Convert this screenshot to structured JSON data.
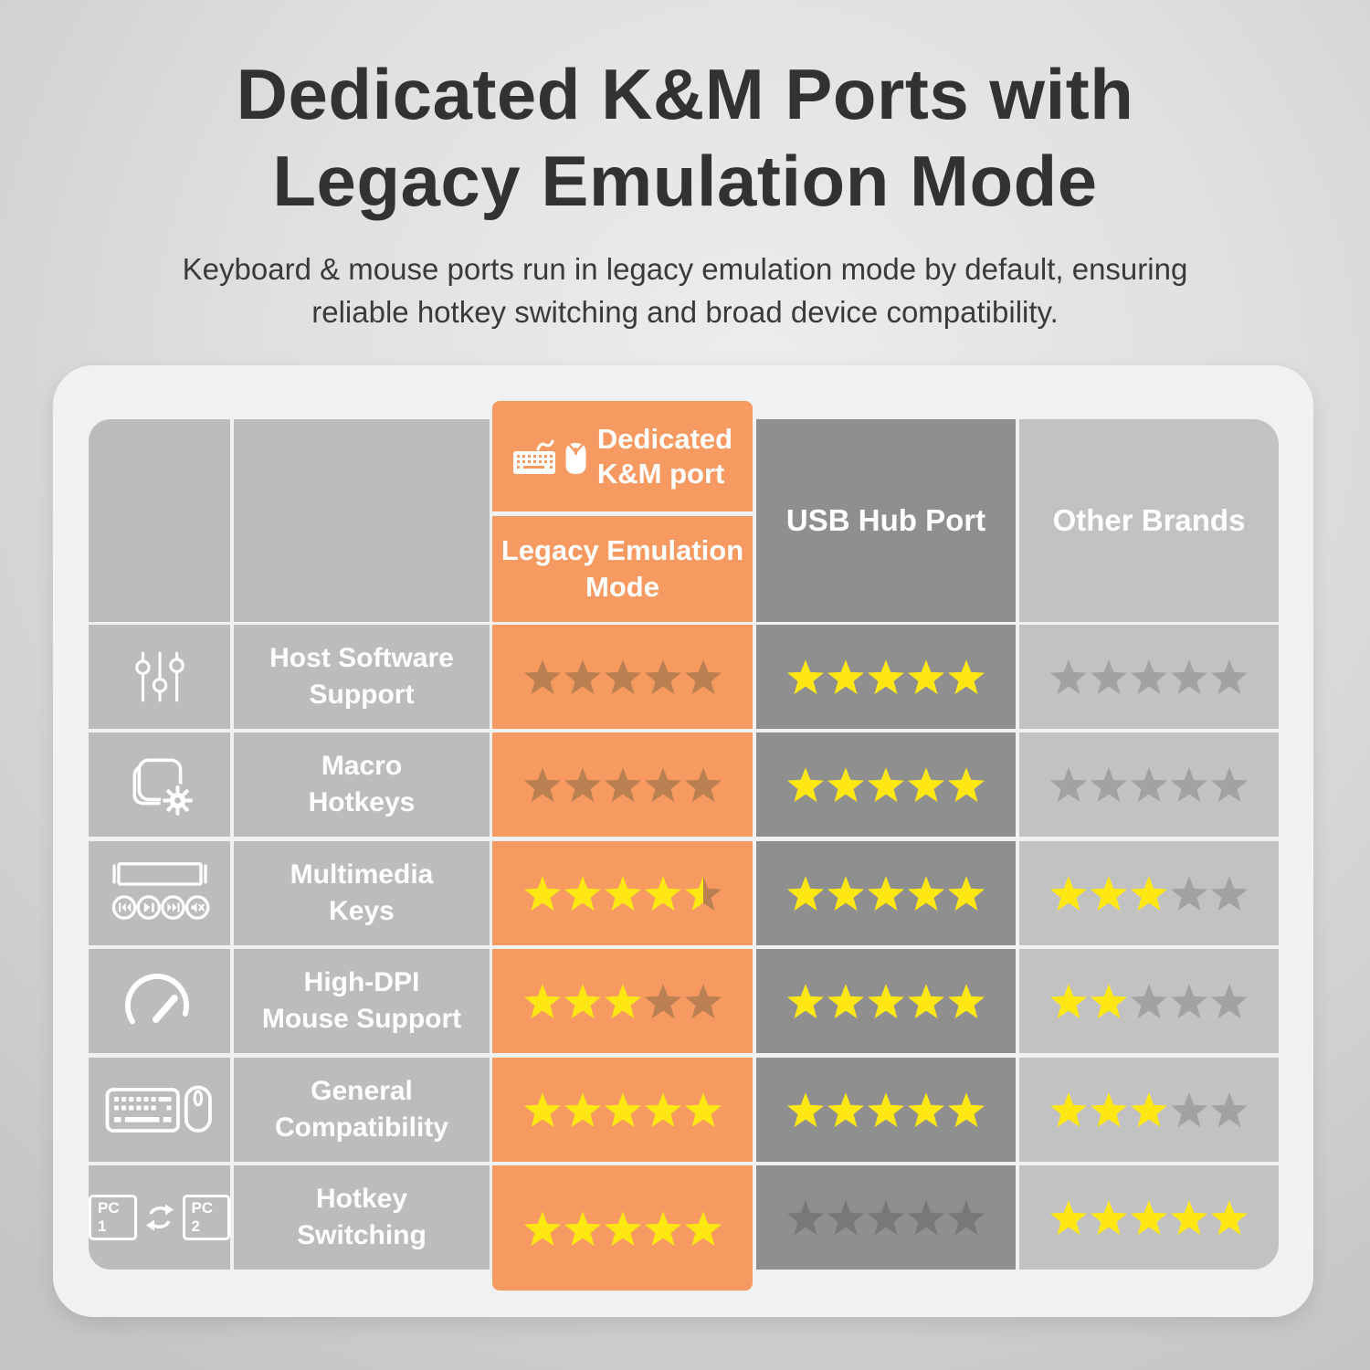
{
  "header": {
    "title_lines": [
      "Dedicated K&M Ports with",
      "Legacy Emulation Mode"
    ],
    "subtitle_lines": [
      "Keyboard & mouse ports run in legacy emulation mode by default, ensuring",
      "reliable hotkey switching and broad device compatibility."
    ]
  },
  "table": {
    "max_stars": 5,
    "km_header": {
      "title": "Dedicated\nK&M port",
      "mode": "Legacy Emulation\nMode",
      "icons": [
        "keyboard-icon",
        "mouse-icon"
      ]
    },
    "usb_header": "USB Hub Port",
    "other_header": "Other Brands",
    "rows": [
      {
        "icon": "sliders-icon",
        "feature": "Host Software\nSupport",
        "ratings": {
          "km": 0,
          "usb": 5,
          "other": 0
        }
      },
      {
        "icon": "macro-pad-icon",
        "feature": "Macro\nHotkeys",
        "ratings": {
          "km": 0,
          "usb": 5,
          "other": 0
        }
      },
      {
        "icon": "multimedia-keys-icon",
        "feature": "Multimedia\nKeys",
        "ratings": {
          "km": 4.5,
          "usb": 5,
          "other": 3
        }
      },
      {
        "icon": "speedometer-icon",
        "feature": "High-DPI\nMouse Support",
        "ratings": {
          "km": 3,
          "usb": 5,
          "other": 2
        }
      },
      {
        "icon": "keyboard-mouse-icon",
        "feature": "General\nCompatibility",
        "ratings": {
          "km": 5,
          "usb": 5,
          "other": 3
        }
      },
      {
        "icon": "pc-switch-icon",
        "feature": "Hotkey\nSwitching",
        "ratings": {
          "km": 5,
          "usb": 0,
          "other": 5
        }
      }
    ]
  },
  "icons": {
    "pc1_label": "PC 1",
    "pc2_label": "PC 2"
  },
  "colors": {
    "accent_orange": "#f79a62",
    "star_yellow": "#ffe714",
    "star_empty_on_orange": "#ba8052",
    "star_empty_on_gray": "#a2a2a2",
    "star_empty_on_dark": "#787878",
    "cell_gray": "#bcbcbc",
    "cell_dark_gray": "#8f8f8f",
    "cell_light_gray": "#c2c2c2",
    "card_bg": "#f0f1f3",
    "title_color": "#323232"
  },
  "chart_data": {
    "type": "table",
    "title": "Dedicated K&M Ports with Legacy Emulation Mode",
    "columns": [
      "Dedicated K&M port (Legacy Emulation Mode)",
      "USB Hub Port",
      "Other Brands"
    ],
    "categories": [
      "Host Software Support",
      "Macro Hotkeys",
      "Multimedia Keys",
      "High-DPI Mouse Support",
      "General Compatibility",
      "Hotkey Switching"
    ],
    "series": [
      {
        "name": "Dedicated K&M port (Legacy Emulation Mode)",
        "values": [
          0,
          0,
          4.5,
          3,
          5,
          5
        ]
      },
      {
        "name": "USB Hub Port",
        "values": [
          5,
          5,
          5,
          5,
          5,
          0
        ]
      },
      {
        "name": "Other Brands",
        "values": [
          0,
          0,
          3,
          2,
          3,
          5
        ]
      }
    ],
    "value_scale": "stars out of 5"
  }
}
